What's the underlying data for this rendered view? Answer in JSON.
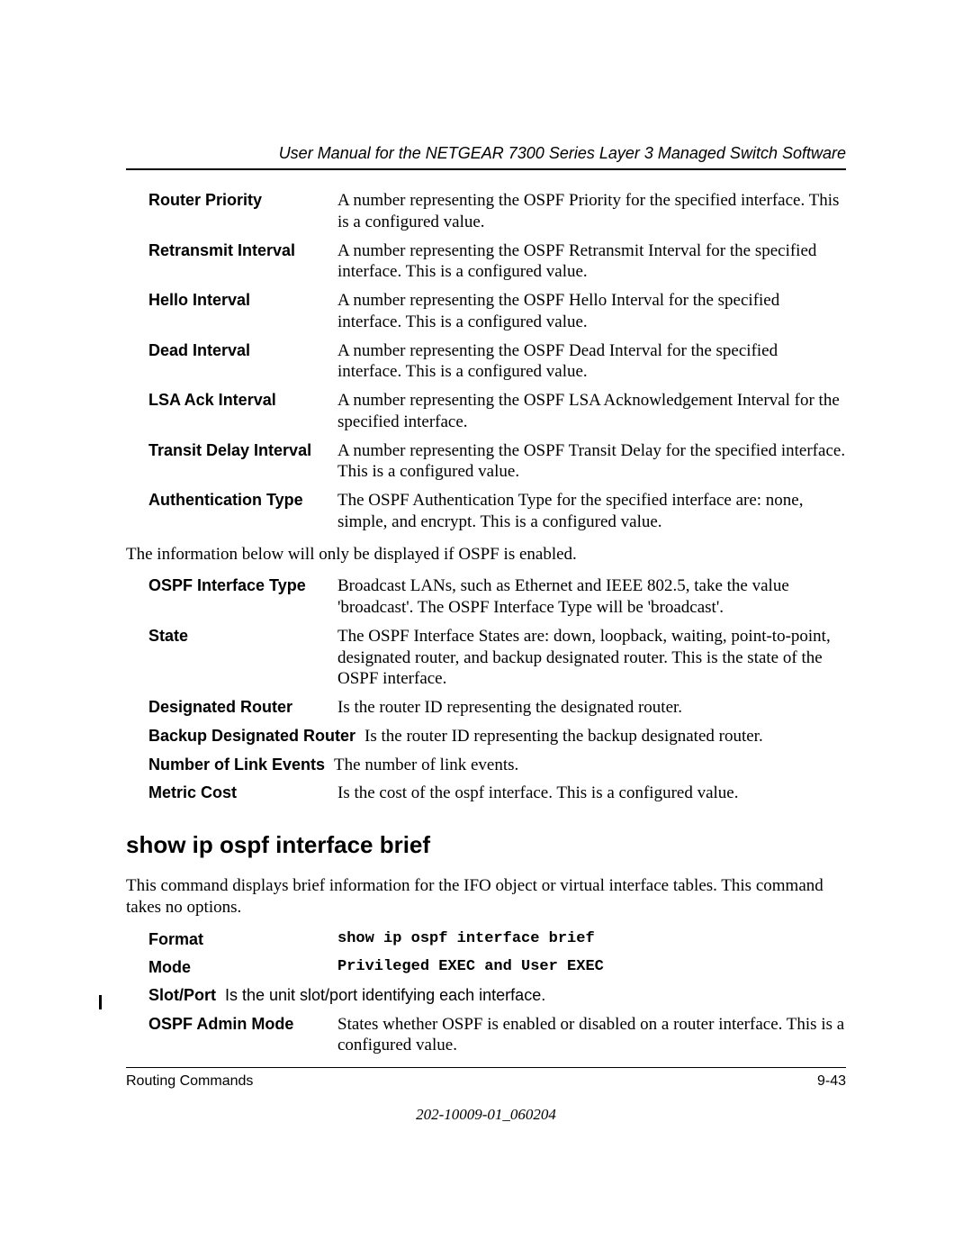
{
  "header": {
    "title": "User Manual for the NETGEAR 7300 Series Layer 3 Managed Switch Software"
  },
  "definitions_group1": [
    {
      "term": "Router Priority",
      "desc": "A number representing the OSPF Priority for the specified interface. This is a configured value."
    },
    {
      "term": "Retransmit Interval",
      "desc": "A number representing the OSPF Retransmit Interval for the specified interface. This is a configured value."
    },
    {
      "term": "Hello Interval",
      "desc": "A number representing the OSPF Hello Interval for the specified interface. This is a configured value."
    },
    {
      "term": "Dead Interval",
      "desc": "A number representing the OSPF Dead Interval for the specified interface. This is a configured value."
    },
    {
      "term": "LSA Ack Interval",
      "desc": "A number representing the OSPF LSA Acknowledgement Interval for the specified interface."
    },
    {
      "term": "Transit Delay Interval",
      "desc": "A number representing the OSPF Transit Delay for the specified interface. This is a configured value."
    },
    {
      "term": "Authentication Type",
      "desc": "The OSPF Authentication Type for the specified interface are: none, simple, and encrypt. This is a configured value."
    }
  ],
  "note1": "The information below will only be displayed if OSPF is enabled.",
  "definitions_group2": [
    {
      "term": "OSPF Interface Type",
      "desc": "Broadcast LANs, such as Ethernet and IEEE 802.5, take the value 'broadcast'. The OSPF Interface Type will be 'broadcast'."
    },
    {
      "term": "State",
      "desc": "The OSPF Interface States are: down, loopback, waiting, point-to-point, designated router, and backup designated router. This is the state of the OSPF interface."
    },
    {
      "term": "Designated Router",
      "desc": "Is the router ID representing the designated router."
    }
  ],
  "bdr": {
    "term": "Backup Designated Router",
    "desc": "Is the router ID representing the backup designated router."
  },
  "nle": {
    "term": "Number of Link Events",
    "desc": "The number of link events."
  },
  "metric_cost": {
    "term": "Metric Cost",
    "desc": "Is the cost of the ospf interface. This is a configured value."
  },
  "section": {
    "heading": "show ip ospf interface brief",
    "intro": "This command displays brief information for the IFO object or virtual interface tables. This command takes no options.",
    "format_label": "Format",
    "format_value": "show ip ospf interface brief",
    "mode_label": "Mode",
    "mode_value": "Privileged EXEC and User EXEC",
    "slotport_label": "Slot/Port",
    "slotport_value": "Is the unit slot/port identifying each interface.",
    "ospf_admin_label": "OSPF Admin Mode",
    "ospf_admin_value": "States whether OSPF is enabled or disabled on a router interface. This is a configured value."
  },
  "footer": {
    "left": "Routing Commands",
    "right": "9-43",
    "docid": "202-10009-01_060204"
  }
}
